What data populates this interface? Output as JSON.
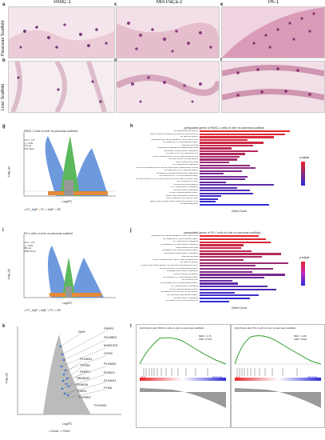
{
  "panel_letters": {
    "a": "a",
    "b": "b",
    "c": "c",
    "d": "d",
    "e": "e",
    "f": "f",
    "g": "g",
    "h": "h",
    "i": "i",
    "j": "j",
    "k": "k",
    "l": "l"
  },
  "col_headers": [
    "PANC-1",
    "MIA PaCa-2",
    "PK-1"
  ],
  "row_headers": [
    "Pancreas Scaffold",
    "Liver Scaffold"
  ],
  "colors": {
    "he_pink": "#e8b9c8",
    "he_purple": "#7a3f7a",
    "volcano_grey": "#999999",
    "volcano_green": "#5cb85c",
    "volcano_blue": "#4a7fd4",
    "volcano_orange": "#e58a3a",
    "bar_red": "#e8262a",
    "bar_blue": "#2b2bd6",
    "gsea_green": "#2ca02c"
  },
  "g": {
    "title": "PANC-1 cells on liver vs pancreas scaffolds",
    "stats": [
      "LFC > 0.5",
      "p < 0.05",
      "713 up",
      "790 down"
    ],
    "xlabel": "Log2FC",
    "ylabel": "-Log₁₀(p)",
    "legend": [
      "FC_AdjP",
      "FC",
      "AdjP",
      "NS"
    ]
  },
  "h": {
    "title": "upregulated genes in PANC-1 cells on liver vs pancreas scaffolds",
    "xlabel": "Gene Count",
    "legend_title": "p.adjust"
  },
  "i": {
    "title": "PK-1 cells on liver vs pancreas scaffold",
    "stats": [
      "LFC > 0.5",
      "p < 0.05",
      "484 up",
      "1590 down"
    ],
    "xlabel": "Log2FC",
    "ylabel": "-Log₁₀(p)",
    "legend": [
      "FC_AdjP",
      "AdjP",
      "FC",
      "NS"
    ]
  },
  "j": {
    "title": "upregulated genes in PK-1 cells on liver vs pancreas scaffolds",
    "xlabel": "Gene Count",
    "legend_title": "p.adjust"
  },
  "k": {
    "ylabel": "-Log₁₀(p)",
    "xlabel": "Log2FC",
    "genes": [
      "SHH",
      "FARP1",
      "SCUBE3",
      "MARCKS",
      "CDH2",
      "PLXND1",
      "TGFB2",
      "PLXNB2",
      "FARP2",
      "ROBO1",
      "SEMA3C",
      "PLXNA1",
      "SEMA3A",
      "FLNA",
      "THBS1",
      "TGFBR2",
      "PLXNA2"
    ],
    "legend": [
      "Genes",
      "PDAC"
    ]
  },
  "l": {
    "panels": [
      {
        "title": "Enrichment plot: PANC-1 cells on liver vs pancreas scaffolds",
        "nes": "NES = 1.74",
        "fdr": "FDR <0.001",
        "left": "liver",
        "right": "pancreas"
      },
      {
        "title": "Enrichment plot: PK-1 cells on liver vs pancreas scaffolds",
        "nes": "NES = 2.06",
        "fdr": "FDR <0.001",
        "left": "liver",
        "right": "pancreas"
      }
    ]
  },
  "chart_data": [
    {
      "type": "bar",
      "panel": "h",
      "title": "upregulated genes in PANC-1 cells on liver vs pancreas scaffolds",
      "xlabel": "Gene Count",
      "ylabel": "",
      "categories": [
        "GO:RIBOSOMAL ADHESION",
        "REACTOME EXTRACELLULAR MATRIX ORGANIZATION",
        "GO:CELL ADHESION",
        "HALLMARK EPITHELIAL MESENCHYMAL TRANSITION",
        "GO:SKELETAL SYSTEM DEVELOPMENT",
        "NABA MATRISOME",
        "HALLMARK INTERFERON GAMMA RESPONSE",
        "GO:ANIMAL ORGAN MORPHOGENESIS",
        "GO:CELL JUNCTION ORGANIZATION",
        "GO:EXTRACELLULAR STRUCTURE ORGANIZATION",
        "GO:CELL SUBSTRATE ADHESION",
        "NABA CORE MATRISOME",
        "GO:TUBE MORPHOGENESIS",
        "GO:POSITIVE REGULATION OF MULTICELLULAR ORGANISMAL PROCESS",
        "GO:REGULATION OF CELL ADHESION",
        "GO:ENDOCHONDRAL BONE MORPHOGENESIS",
        "GO:CIRCULATORY SYSTEM DEVELOPMENT",
        "GO:ANATOMICAL STRUCTURE FORMATION INVOLVED IN MORPHOGENESIS",
        "GO:INTEGRIN PATHWAY",
        "GO:BIOLOGICAL ADHESION",
        "GO:TISSUE MORPHOGENESIS",
        "GO:CELL MORPHOGENESIS",
        "GO:EPITHELIUM DEVELOPMENT",
        "REACTOME COLLAGEN FORMATION",
        "REACTOME ECM PROTEOGLYCANS",
        "REACTOME INTEGRIN CELL SURFACE INTERACTIONS",
        "GO:NEUROGENESIS"
      ],
      "values": [
        170,
        160,
        140,
        90,
        120,
        100,
        60,
        110,
        85,
        75,
        70,
        55,
        95,
        105,
        80,
        45,
        90,
        85,
        50,
        140,
        70,
        95,
        100,
        40,
        35,
        30,
        130
      ],
      "xlim": [
        0,
        180
      ]
    },
    {
      "type": "bar",
      "panel": "j",
      "title": "upregulated genes in PK-1 cells on liver vs pancreas scaffolds",
      "xlabel": "Gene Count",
      "ylabel": "",
      "categories": [
        "HALLMARK EPITHELIAL MESENCHYMAL TRANSITION",
        "GO:SKELETAL SYSTEM DEVELOPMENT",
        "GO:TUBE MORPHOGENESIS",
        "GO:SKELETAL SYSTEM MORPHOGENESIS",
        "NABA CORE MATRISOME",
        "GO:EMBRYONIC ORGAN DEVELOPMENT",
        "GO:ANIMAL ORGAN MORPHOGENESIS",
        "NABA MATRISOME",
        "GO:EXTRACELLULAR STRUCTURE ORGANIZATION",
        "GO:CELL ADHESION",
        "GO:ENZYME LINKED RECEPTOR PROTEIN SIGNALING PATHWAY",
        "GO:CIRCULATORY SYSTEM DEVELOPMENT",
        "GO:EMBRYONIC MORPHOGENESIS",
        "GO:BIOLOGICAL ADHESION",
        "GO:SKELETAL SYSTEM DEVELOPMENT",
        "GO:OSSIFICATION",
        "GO:UROGENITAL SYSTEM DEVELOPMENT",
        "GO:TISSUE MORPHOGENESIS",
        "GO:EPITHELIUM DEVELOPMENT",
        "GO:REGULATION OF BODY FLUID LEVELS",
        "GO:VASCULATURE DEVELOPMENT",
        "GO:CELL MORPHOGENESIS",
        "GO:CELL JUNCTION ORGANIZATION"
      ],
      "values": [
        40,
        45,
        48,
        30,
        28,
        35,
        55,
        42,
        30,
        60,
        38,
        50,
        36,
        58,
        44,
        22,
        26,
        46,
        52,
        24,
        40,
        34,
        20
      ],
      "xlim": [
        0,
        65
      ]
    }
  ]
}
